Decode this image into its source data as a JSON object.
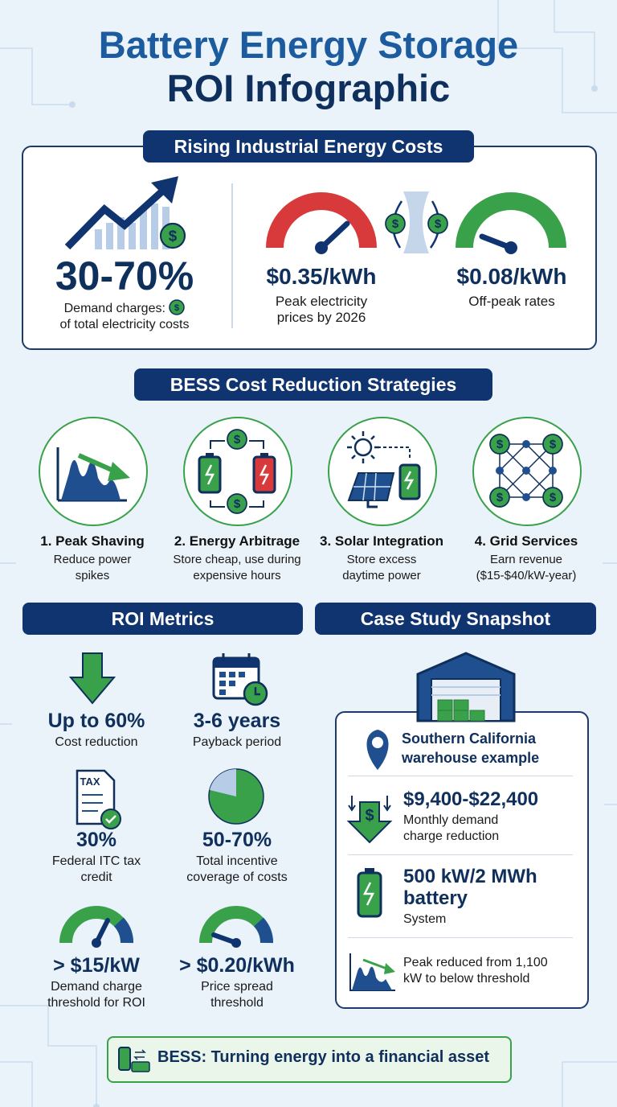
{
  "title": {
    "line1": "Battery Energy Storage",
    "line2": "ROI Infographic"
  },
  "icon_text": {
    "dollar": "$",
    "tax": "TAX"
  },
  "energy_costs": {
    "heading": "Rising Industrial Energy Costs",
    "demand_share": {
      "value": "30-70%",
      "label_start": "Demand charges:",
      "label_end": "of total electricity costs"
    },
    "peak_price": {
      "value": "$0.35/kWh",
      "label": "Peak electricity prices by 2026"
    },
    "off_peak_price": {
      "value": "$0.08/kWh",
      "label": "Off-peak rates"
    }
  },
  "strategies": {
    "heading": "BESS Cost Reduction Strategies",
    "items": [
      {
        "title": "1. Peak Shaving",
        "description": "Reduce power spikes"
      },
      {
        "title": "2. Energy Arbitrage",
        "description": "Store cheap, use during expensive hours"
      },
      {
        "title": "3. Solar Integration",
        "description": "Store excess daytime power"
      },
      {
        "title": "4. Grid Services",
        "description": "Earn revenue ($15-$40/kW-year)"
      }
    ]
  },
  "roi_metrics": {
    "heading": "ROI Metrics",
    "items": [
      {
        "value": "Up to 60%",
        "label": "Cost reduction"
      },
      {
        "value": "3-6 years",
        "label": "Payback period"
      },
      {
        "value": "30%",
        "label": "Federal ITC tax credit"
      },
      {
        "value": "50-70%",
        "label": "Total incentive coverage of costs"
      },
      {
        "value": "> $15/kW",
        "label": "Demand charge threshold for ROI"
      },
      {
        "value": "> $0.20/kWh",
        "label": "Price spread threshold"
      }
    ]
  },
  "case_study": {
    "heading": "Case Study Snapshot",
    "location": "Southern California warehouse example",
    "items": [
      {
        "value": "$9,400-$22,400",
        "label": "Monthly demand charge reduction"
      },
      {
        "value": "500 kW/2 MWh battery",
        "label": "System"
      }
    ],
    "peak_note": "Peak reduced from 1,100 kW to below threshold"
  },
  "footer": "BESS: Turning energy into a financial asset"
}
